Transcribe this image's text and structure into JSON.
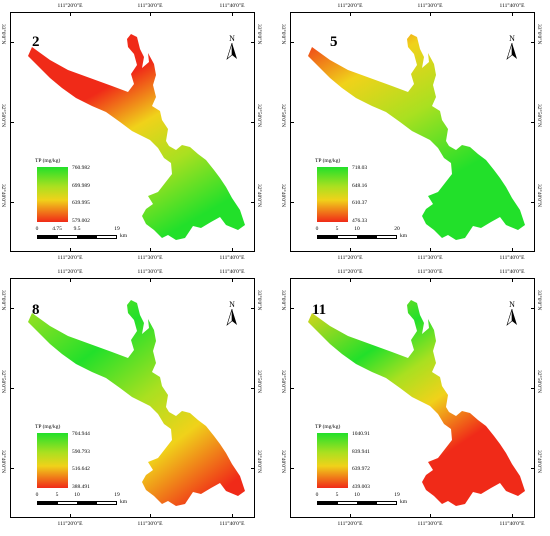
{
  "coords": {
    "lon": [
      "111°20'0\"E",
      "111°30'0\"E",
      "111°40'0\"E"
    ],
    "lat": [
      "33°0'0\"N",
      "32°50'0\"N",
      "32°40'0\"N"
    ]
  },
  "north_label": "N",
  "units_km": "km",
  "legend_title": "TP (mg/kg)",
  "colors": {
    "high": "#22e02a",
    "mid1": "#a9e020",
    "mid2": "#f0d21a",
    "low": "#f02a18"
  },
  "panels": [
    {
      "month": "2",
      "legend_values": [
        "760.982",
        "699.989",
        "639.995",
        "579.002"
      ],
      "scale_labels": [
        "0",
        "4.75",
        "9.5",
        "19"
      ],
      "dominant": "north-red"
    },
    {
      "month": "5",
      "legend_values": [
        "718.03",
        "648.16",
        "610.37",
        "476.33"
      ],
      "scale_labels": [
        "0",
        "5",
        "10",
        "20"
      ],
      "dominant": "north-red-south-green"
    },
    {
      "month": "8",
      "legend_values": [
        "704.944",
        "590.793",
        "516.642",
        "388.491"
      ],
      "scale_labels": [
        "0",
        "5",
        "10",
        "19"
      ],
      "dominant": "north-green-south-red"
    },
    {
      "month": "11",
      "legend_values": [
        "1040.91",
        "839.941",
        "639.972",
        "439.003"
      ],
      "scale_labels": [
        "0",
        "5",
        "10",
        "19"
      ],
      "dominant": "south-red"
    }
  ]
}
